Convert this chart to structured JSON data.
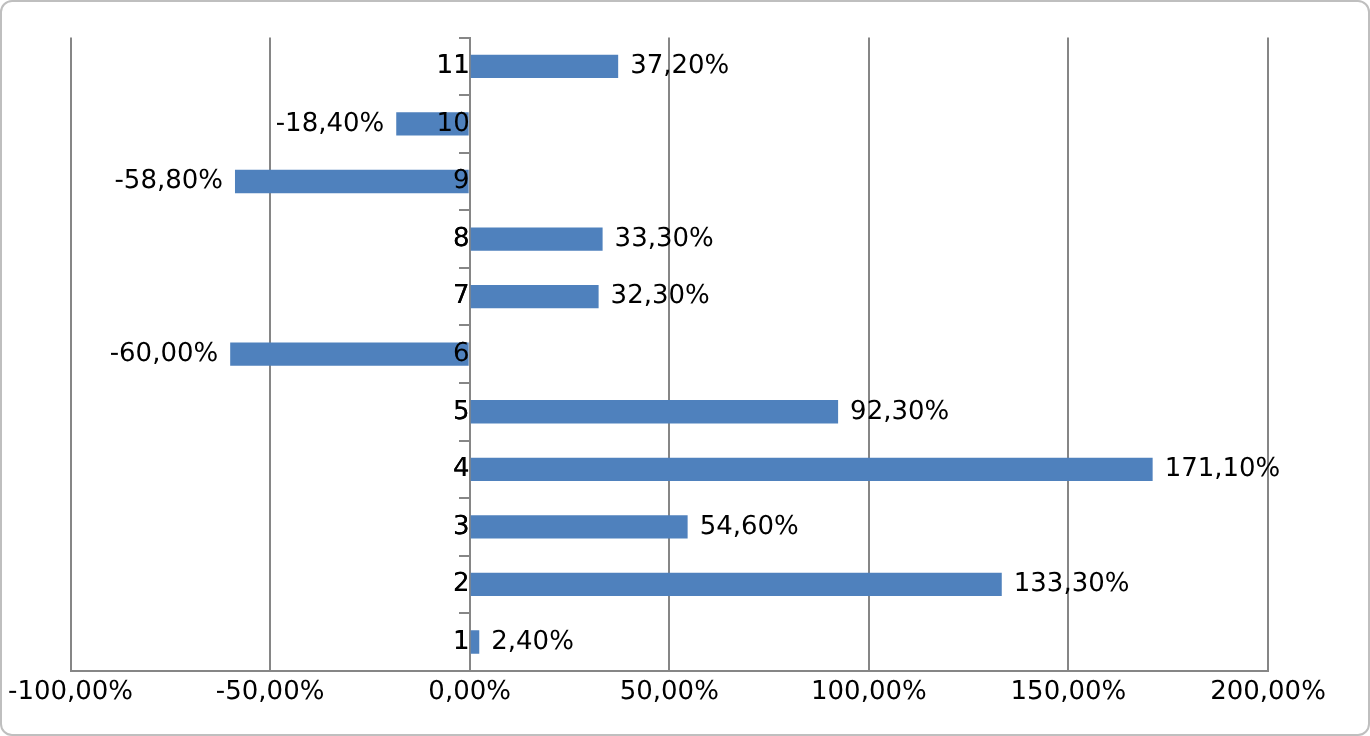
{
  "chart_data": {
    "type": "bar",
    "orientation": "horizontal",
    "categories": [
      "11",
      "10",
      "9",
      "8",
      "7",
      "6",
      "5",
      "4",
      "3",
      "2",
      "1"
    ],
    "values": [
      37.2,
      -18.4,
      -58.8,
      33.3,
      32.3,
      -60,
      92.3,
      171.1,
      54.6,
      133.3,
      2.4
    ],
    "value_labels": [
      "37,20%",
      "-18,40%",
      "-58,80%",
      "33,30%",
      "32,30%",
      "-60,00%",
      "92,30%",
      "171,10%",
      "54,60%",
      "133,30%",
      "2,40%"
    ],
    "color": "#4f81bd",
    "xlim": [
      -100,
      200
    ],
    "xticks": [
      {
        "value": -100,
        "label": "-100,00%"
      },
      {
        "value": -50,
        "label": "-50,00%"
      },
      {
        "value": 0,
        "label": "0,00%"
      },
      {
        "value": 50,
        "label": "50,00%"
      },
      {
        "value": 100,
        "label": "100,00%"
      },
      {
        "value": 150,
        "label": "150,00%"
      },
      {
        "value": 200,
        "label": "200,00%"
      }
    ],
    "grid": "x",
    "legend": false
  }
}
